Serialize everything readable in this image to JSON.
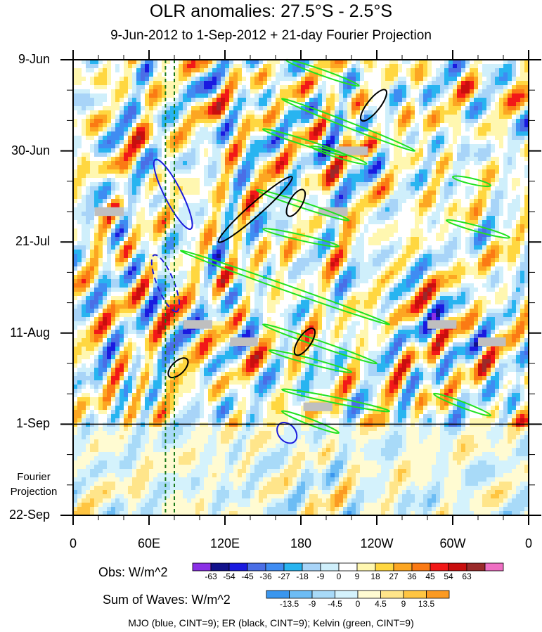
{
  "chart_data": {
    "type": "heatmap",
    "title": "OLR anomalies: 27.5°S - 2.5°S",
    "subtitle": "9-Jun-2012 to 1-Sep-2012 + 21-day Fourier Projection",
    "x_ticks": [
      "0",
      "60E",
      "120E",
      "180",
      "120W",
      "60W",
      "0"
    ],
    "x_tick_values": [
      0,
      60,
      120,
      180,
      240,
      300,
      360
    ],
    "xlim": [
      0,
      360
    ],
    "y_ticks": [
      "9-Jun",
      "30-Jun",
      "21-Jul",
      "11-Aug",
      "1-Sep",
      "22-Sep"
    ],
    "y_tick_days": [
      0,
      21,
      42,
      63,
      84,
      105
    ],
    "ylim_days": [
      0,
      105
    ],
    "observation_end_day": 84,
    "projection_label": "Fourier Projection",
    "colors": {
      "obs_levels": [
        "#8a30e6",
        "#12128c",
        "#1a1ae0",
        "#4a6ee6",
        "#3f8cf2",
        "#28b4f0",
        "#a8d4f8",
        "#cfeffb",
        "#ffffff",
        "#fff7b0",
        "#ffd740",
        "#fca622",
        "#fb7a14",
        "#f21818",
        "#c90e0e",
        "#9a2a2a",
        "#ef6fc3"
      ],
      "wave_levels": [
        "#3a96ee",
        "#6cbcf4",
        "#a8daf8",
        "#d4f2fc",
        "#fffbd2",
        "#ffe58a",
        "#ffc542",
        "#fb9a22"
      ],
      "mjo": "#1a1adc",
      "er": "#000000",
      "kelvin": "#1fe21f",
      "missing": "#bfbfbf",
      "reference_line": "#1a7a1a"
    },
    "obs_colorbar": {
      "title": "Obs: W/m^2",
      "ticks": [
        "-63",
        "-54",
        "-45",
        "-36",
        "-27",
        "-18",
        "-9",
        "0",
        "9",
        "18",
        "27",
        "36",
        "45",
        "54",
        "63"
      ]
    },
    "waves_colorbar": {
      "title": "Sum of Waves: W/m^2",
      "ticks": [
        "-13.5",
        "-9",
        "-4.5",
        "0",
        "4.5",
        "9",
        "13.5"
      ]
    },
    "footnote": "MJO (blue, CINT=9); ER (black, CINT=9); Kelvin (green, CINT=9)",
    "reference_lines_lon": [
      73,
      80
    ],
    "missing_patches": [
      {
        "lon": [
          17,
          40
        ],
        "day": [
          34,
          36
        ]
      },
      {
        "lon": [
          194,
          217
        ],
        "day": [
          34,
          36
        ]
      },
      {
        "lon": [
          208,
          233
        ],
        "day": [
          20,
          22
        ]
      },
      {
        "lon": [
          87,
          110
        ],
        "day": [
          60,
          62
        ]
      },
      {
        "lon": [
          124,
          146
        ],
        "day": [
          64,
          66
        ]
      },
      {
        "lon": [
          280,
          303
        ],
        "day": [
          60,
          62
        ]
      },
      {
        "lon": [
          320,
          342
        ],
        "day": [
          64,
          66
        ]
      },
      {
        "lon": [
          182,
          205
        ],
        "day": [
          79,
          81
        ]
      }
    ],
    "mjo_contours": [
      {
        "lon_from": 65,
        "day_from": 23,
        "lon_to": 93,
        "day_to": 39,
        "style": "solid"
      },
      {
        "lon_from": 64,
        "day_from": 45,
        "lon_to": 82,
        "day_to": 58,
        "style": "dashed"
      },
      {
        "lon_from": 163,
        "day_from": 84,
        "lon_to": 175,
        "day_to": 88,
        "style": "solid"
      }
    ],
    "er_contours": [
      {
        "lon_from": 247,
        "day_from": 7,
        "lon_to": 228,
        "day_to": 14
      },
      {
        "lon_from": 173,
        "day_from": 27,
        "lon_to": 115,
        "day_to": 42
      },
      {
        "lon_from": 182,
        "day_from": 30,
        "lon_to": 170,
        "day_to": 36
      },
      {
        "lon_from": 190,
        "day_from": 62,
        "lon_to": 176,
        "day_to": 68
      },
      {
        "lon_from": 90,
        "day_from": 69,
        "lon_to": 76,
        "day_to": 73
      }
    ],
    "kelvin_bands": [
      {
        "lon_from": 168,
        "day_from": 0,
        "lon_to": 226,
        "day_to": 6
      },
      {
        "lon_from": 165,
        "day_from": 9,
        "lon_to": 270,
        "day_to": 21
      },
      {
        "lon_from": 150,
        "day_from": 16,
        "lon_to": 215,
        "day_to": 22
      },
      {
        "lon_from": 188,
        "day_from": 20,
        "lon_to": 232,
        "day_to": 24
      },
      {
        "lon_from": 145,
        "day_from": 30,
        "lon_to": 218,
        "day_to": 37
      },
      {
        "lon_from": 150,
        "day_from": 39,
        "lon_to": 210,
        "day_to": 43
      },
      {
        "lon_from": 85,
        "day_from": 44,
        "lon_to": 250,
        "day_to": 61
      },
      {
        "lon_from": 150,
        "day_from": 61,
        "lon_to": 240,
        "day_to": 70
      },
      {
        "lon_from": 155,
        "day_from": 67,
        "lon_to": 220,
        "day_to": 72
      },
      {
        "lon_from": 165,
        "day_from": 76,
        "lon_to": 250,
        "day_to": 81
      },
      {
        "lon_from": 165,
        "day_from": 81,
        "lon_to": 210,
        "day_to": 86
      },
      {
        "lon_from": 285,
        "day_from": 77,
        "lon_to": 330,
        "day_to": 82
      },
      {
        "lon_from": 295,
        "day_from": 37,
        "lon_to": 345,
        "day_to": 41
      },
      {
        "lon_from": 300,
        "day_from": 27,
        "lon_to": 330,
        "day_to": 29
      }
    ]
  }
}
